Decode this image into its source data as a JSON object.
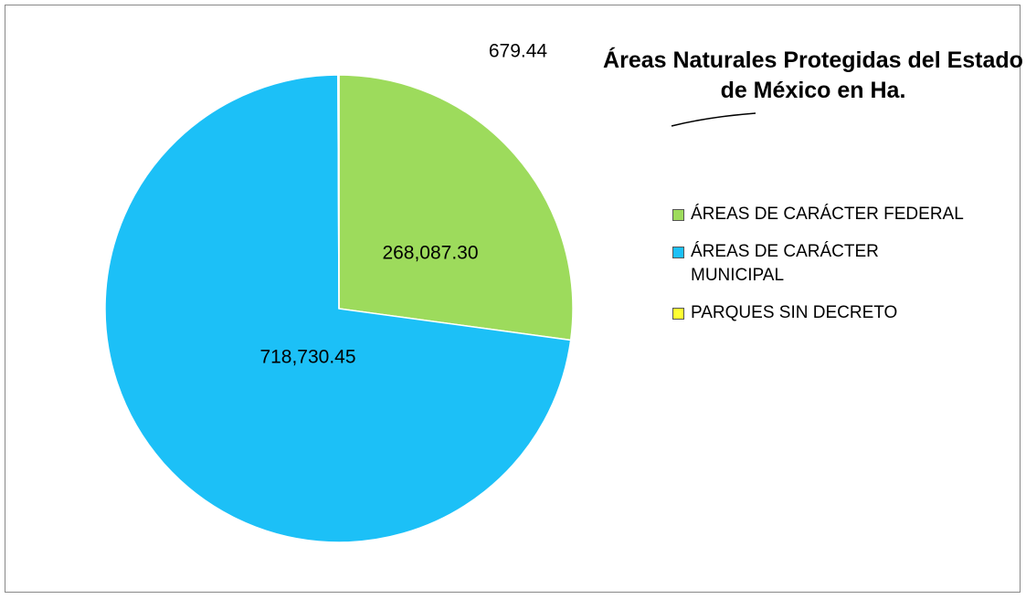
{
  "chart_data": {
    "type": "pie",
    "title": "Áreas Naturales Protegidas del Estado de México en Ha.",
    "categories": [
      "ÁREAS DE CARÁCTER FEDERAL",
      "ÁREAS DE CARÁCTER MUNICIPAL",
      "PARQUES SIN DECRETO"
    ],
    "values": [
      268087.3,
      718730.45,
      679.44
    ],
    "value_labels": [
      "268,087.30",
      "718,730.45",
      "679.44"
    ],
    "colors": [
      "#9ddb5c",
      "#1cc0f7",
      "#ffff33"
    ],
    "legend": "right"
  }
}
